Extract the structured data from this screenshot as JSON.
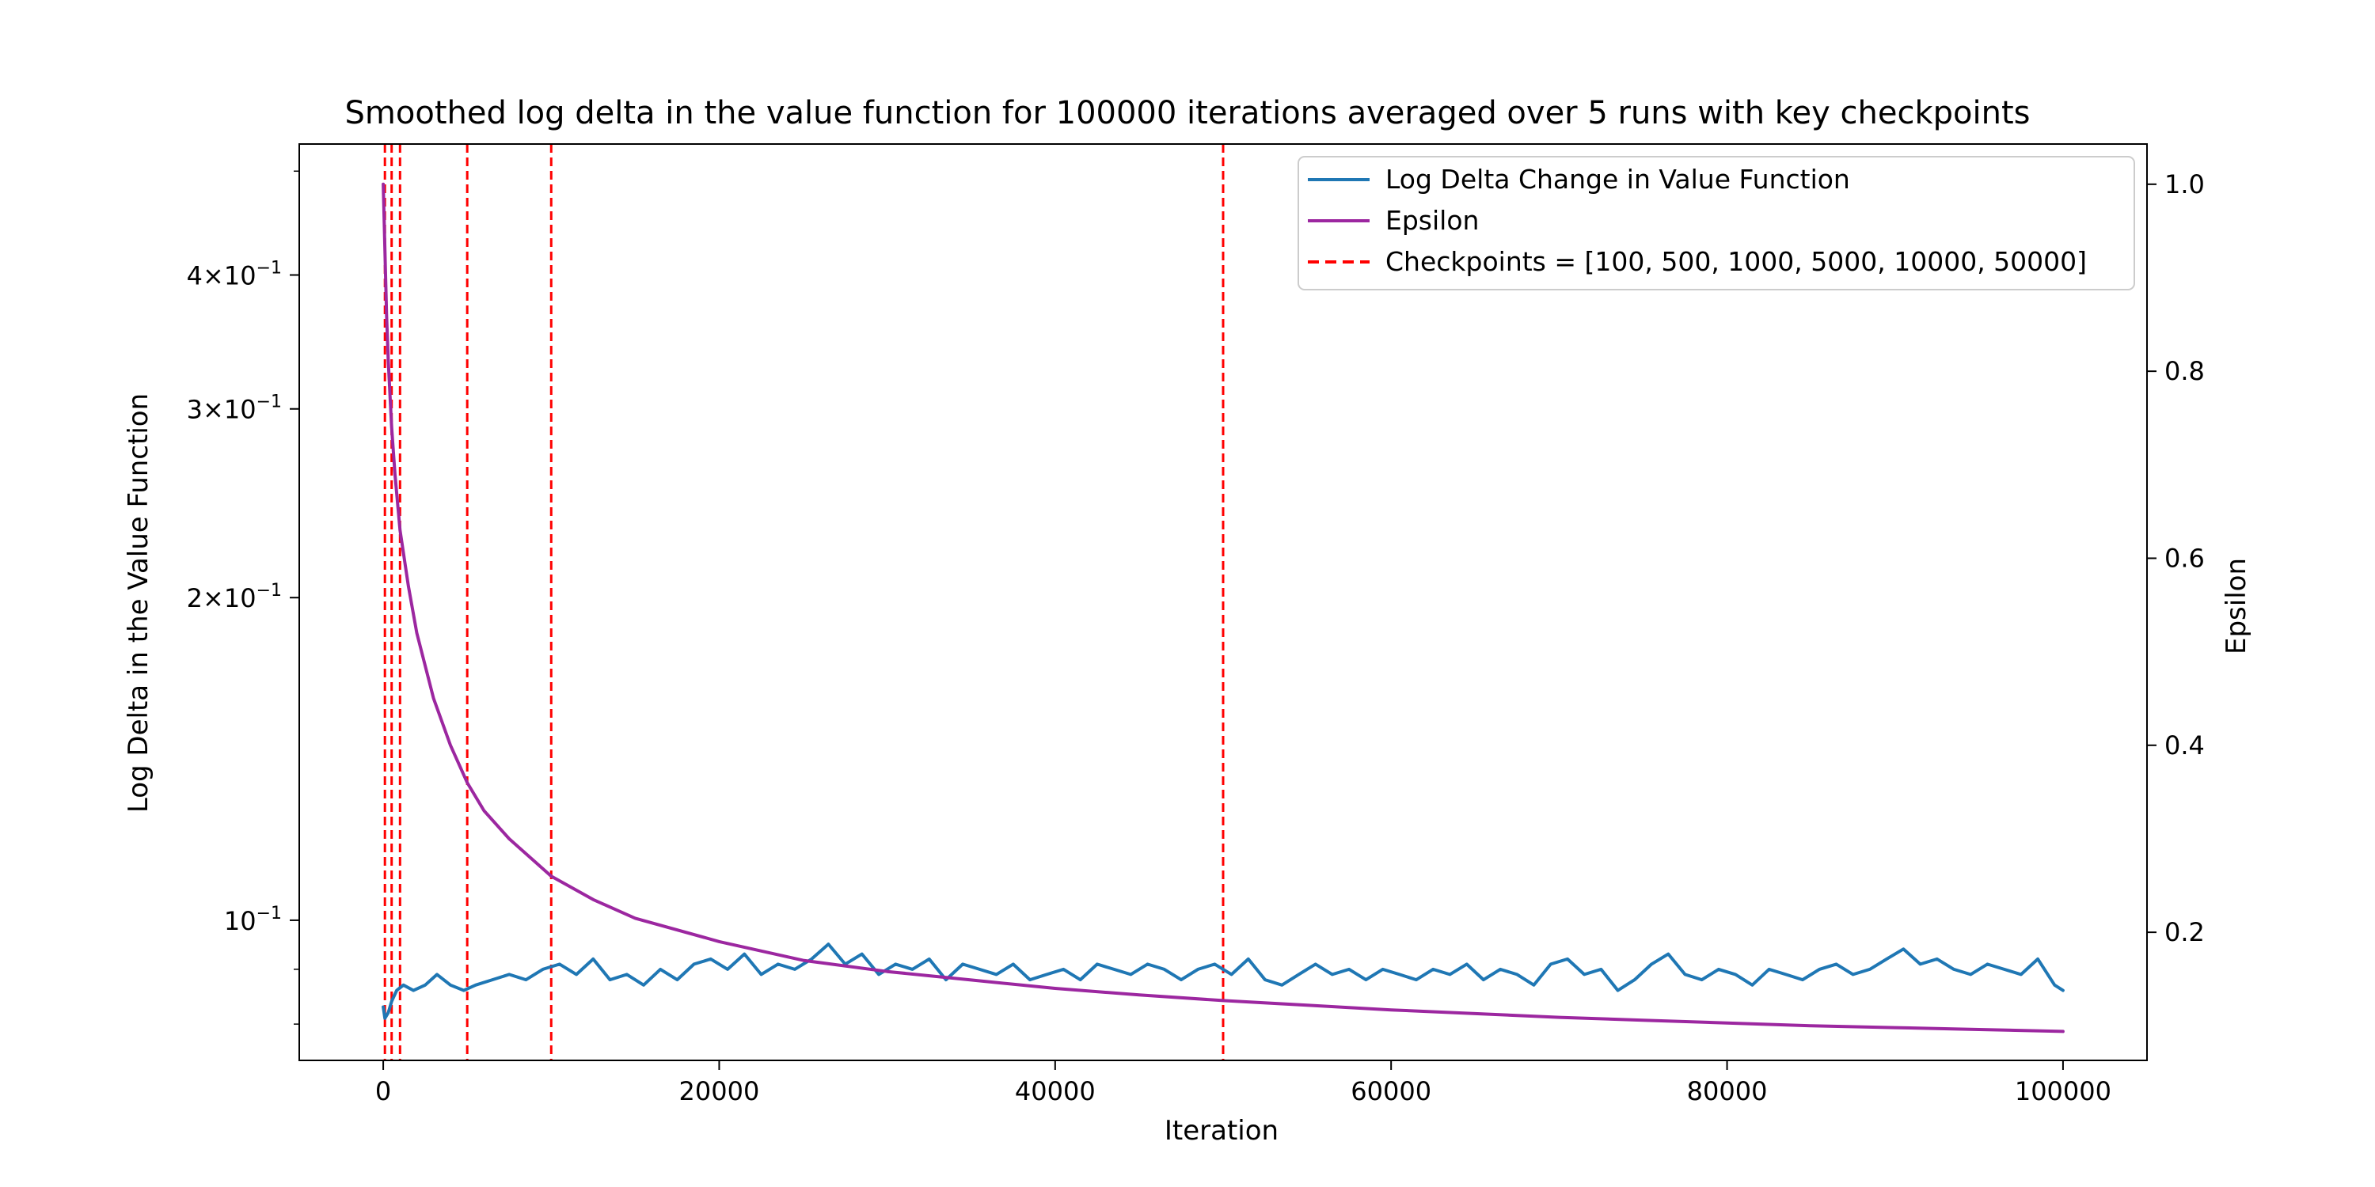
{
  "chart_data": {
    "type": "line",
    "title": "Smoothed log delta in the value function for 100000 iterations averaged over 5 runs with key checkpoints",
    "xlabel": "Iteration",
    "ylabel": "Log Delta in the Value Function",
    "y2label": "Epsilon",
    "xlim": [
      -5000,
      105000
    ],
    "ylim": [
      0.074,
      0.53
    ],
    "yscale": "log",
    "y2lim": [
      0.063,
      1.043
    ],
    "x_ticks": [
      {
        "value": 0,
        "label": "0"
      },
      {
        "value": 20000,
        "label": "20000"
      },
      {
        "value": 40000,
        "label": "40000"
      },
      {
        "value": 60000,
        "label": "60000"
      },
      {
        "value": 80000,
        "label": "80000"
      },
      {
        "value": 100000,
        "label": "100000"
      }
    ],
    "y_ticks": [
      {
        "value": 0.1,
        "base": "10",
        "exp": "−1"
      },
      {
        "value": 0.2,
        "base": "2×10",
        "exp": "−1"
      },
      {
        "value": 0.3,
        "base": "3×10",
        "exp": "−1"
      },
      {
        "value": 0.4,
        "base": "4×10",
        "exp": "−1"
      }
    ],
    "y2_ticks": [
      {
        "value": 0.2,
        "label": "0.2"
      },
      {
        "value": 0.4,
        "label": "0.4"
      },
      {
        "value": 0.6,
        "label": "0.6"
      },
      {
        "value": 0.8,
        "label": "0.8"
      },
      {
        "value": 1.0,
        "label": "1.0"
      }
    ],
    "grid": false,
    "legend_position": "top-right",
    "checkpoints": [
      100,
      500,
      1000,
      5000,
      10000,
      50000
    ],
    "series": [
      {
        "name": "Log Delta Change in Value Function",
        "axis": "left",
        "color": "#1f77b4",
        "x": [
          0,
          100,
          300,
          500,
          800,
          1200,
          1800,
          2500,
          3200,
          4000,
          4800,
          5500,
          6500,
          7500,
          8500,
          9500,
          10500,
          11500,
          12500,
          13500,
          14500,
          15500,
          16500,
          17500,
          18500,
          19500,
          20500,
          21500,
          22500,
          23500,
          24500,
          25500,
          26500,
          27500,
          28500,
          29500,
          30500,
          31500,
          32500,
          33500,
          34500,
          35500,
          36500,
          37500,
          38500,
          39500,
          40500,
          41500,
          42500,
          43500,
          44500,
          45500,
          46500,
          47500,
          48500,
          49500,
          50500,
          51500,
          52500,
          53500,
          54500,
          55500,
          56500,
          57500,
          58500,
          59500,
          60500,
          61500,
          62500,
          63500,
          64500,
          65500,
          66500,
          67500,
          68500,
          69500,
          70500,
          71500,
          72500,
          73500,
          74500,
          75500,
          76500,
          77500,
          78500,
          79500,
          80500,
          81500,
          82500,
          83500,
          84500,
          85500,
          86500,
          87500,
          88500,
          89500,
          90500,
          91500,
          92500,
          93500,
          94500,
          95500,
          96500,
          97500,
          98500,
          99500,
          100000
        ],
        "values": [
          0.083,
          0.081,
          0.082,
          0.084,
          0.086,
          0.087,
          0.086,
          0.087,
          0.089,
          0.087,
          0.086,
          0.087,
          0.088,
          0.089,
          0.088,
          0.09,
          0.091,
          0.089,
          0.092,
          0.088,
          0.089,
          0.087,
          0.09,
          0.088,
          0.091,
          0.092,
          0.09,
          0.093,
          0.089,
          0.091,
          0.09,
          0.092,
          0.095,
          0.091,
          0.093,
          0.089,
          0.091,
          0.09,
          0.092,
          0.088,
          0.091,
          0.09,
          0.089,
          0.091,
          0.088,
          0.089,
          0.09,
          0.088,
          0.091,
          0.09,
          0.089,
          0.091,
          0.09,
          0.088,
          0.09,
          0.091,
          0.089,
          0.092,
          0.088,
          0.087,
          0.089,
          0.091,
          0.089,
          0.09,
          0.088,
          0.09,
          0.089,
          0.088,
          0.09,
          0.089,
          0.091,
          0.088,
          0.09,
          0.089,
          0.087,
          0.091,
          0.092,
          0.089,
          0.09,
          0.086,
          0.088,
          0.091,
          0.093,
          0.089,
          0.088,
          0.09,
          0.089,
          0.087,
          0.09,
          0.089,
          0.088,
          0.09,
          0.091,
          0.089,
          0.09,
          0.092,
          0.094,
          0.091,
          0.092,
          0.09,
          0.089,
          0.091,
          0.09,
          0.089,
          0.092,
          0.087,
          0.086
        ]
      },
      {
        "name": "Epsilon",
        "axis": "right",
        "color": "#9c27a0",
        "x": [
          0,
          100,
          200,
          300,
          500,
          700,
          1000,
          1500,
          2000,
          3000,
          4000,
          5000,
          6000,
          7500,
          10000,
          12500,
          15000,
          20000,
          25000,
          30000,
          35000,
          40000,
          45000,
          50000,
          55000,
          60000,
          65000,
          70000,
          75000,
          80000,
          85000,
          90000,
          95000,
          100000
        ],
        "values": [
          1.0,
          0.93,
          0.86,
          0.81,
          0.74,
          0.69,
          0.63,
          0.57,
          0.52,
          0.45,
          0.4,
          0.36,
          0.33,
          0.3,
          0.26,
          0.235,
          0.215,
          0.19,
          0.17,
          0.158,
          0.149,
          0.14,
          0.133,
          0.127,
          0.122,
          0.117,
          0.113,
          0.109,
          0.106,
          0.103,
          0.1,
          0.098,
          0.096,
          0.094
        ]
      }
    ],
    "legend": [
      {
        "label": "Log Delta Change in Value Function",
        "style": "solid",
        "color": "#1f77b4"
      },
      {
        "label": "Epsilon",
        "style": "solid",
        "color": "#9c27a0"
      },
      {
        "label": "Checkpoints = [100, 500, 1000, 5000, 10000, 50000]",
        "style": "dashed",
        "color": "#ff0000"
      }
    ]
  }
}
